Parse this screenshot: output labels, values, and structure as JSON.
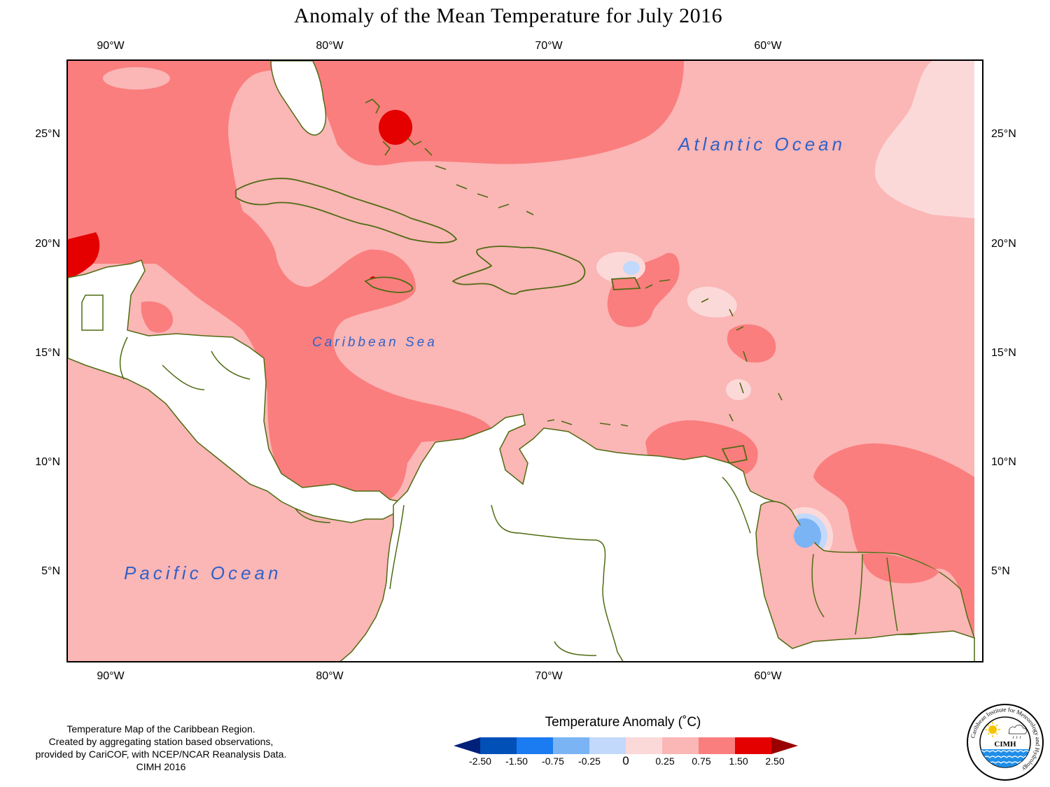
{
  "title": "Anomaly of the Mean Temperature for July 2016",
  "lon_ticks": [
    "90°W",
    "80°W",
    "70°W",
    "60°W"
  ],
  "lat_ticks": [
    "25°N",
    "20°N",
    "15°N",
    "10°N",
    "5°N"
  ],
  "ocean_labels": {
    "atlantic": "Atlantic Ocean",
    "caribbean": "Caribbean Sea",
    "pacific": "Pacific Ocean"
  },
  "caption": [
    "Temperature Map of the Caribbean Region.",
    "Created by aggregating station based observations,",
    "provided by CariCOF, with NCEP/NCAR Reanalysis Data.",
    "CIMH 2016"
  ],
  "legend": {
    "title": "Temperature Anomaly (˚C)",
    "labels": [
      "-2.50",
      "-1.50",
      "-0.75",
      "-0.25",
      "0",
      "0.25",
      "0.75",
      "1.50",
      "2.50"
    ],
    "colors": [
      "#00207a",
      "#0050b8",
      "#1a7cf0",
      "#7ab4f5",
      "#c2d9fb",
      "#fcd9d9",
      "#fbb6b6",
      "#fa7e7e",
      "#e50000",
      "#9a0000"
    ]
  },
  "logo": {
    "ring_text": "Caribbean Institute for Meteorology and Hydrology",
    "abbr": "CIMH"
  },
  "colors": {
    "land_outline": "#4f6b12",
    "ocean_label": "#2f62c8"
  }
}
